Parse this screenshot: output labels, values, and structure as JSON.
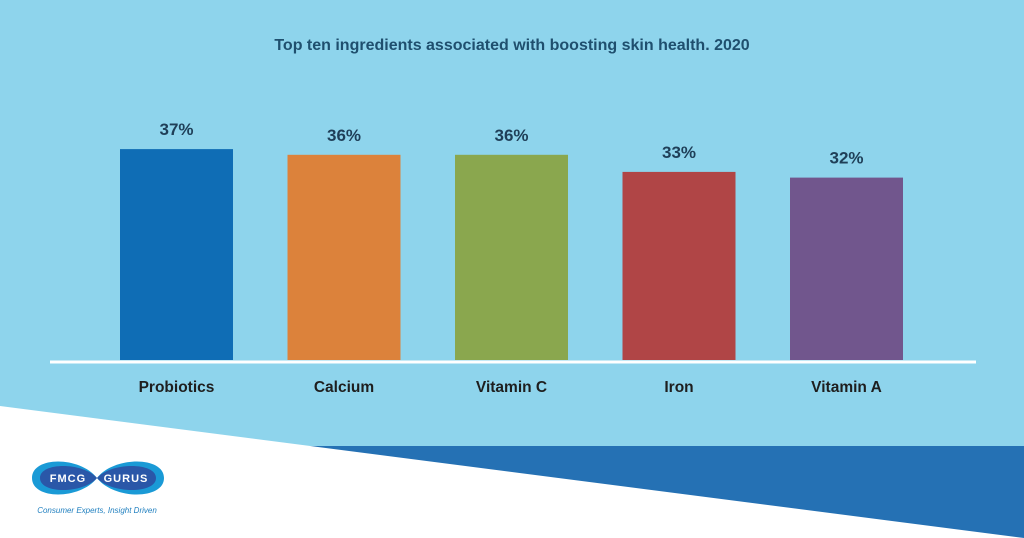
{
  "chart_data": {
    "type": "bar",
    "title": "Top ten ingredients associated with boosting skin health. 2020",
    "categories": [
      "Probiotics",
      "Calcium",
      "Vitamin C",
      "Iron",
      "Vitamin A"
    ],
    "values": [
      37,
      36,
      36,
      33,
      32
    ],
    "value_labels": [
      "37%",
      "36%",
      "36%",
      "33%",
      "32%"
    ],
    "colors": [
      "#0f6db5",
      "#dc823b",
      "#8aa74e",
      "#b04546",
      "#71568d"
    ],
    "ylim": [
      0,
      40
    ],
    "grid": false,
    "legend": "none"
  },
  "logo": {
    "left_word": "FMCG",
    "right_word": "GURUS",
    "tagline": "Consumer Experts, Insight Driven"
  },
  "theme": {
    "background": "#8ed4ec",
    "band": "#2571b4",
    "lower": "#ffffff"
  }
}
